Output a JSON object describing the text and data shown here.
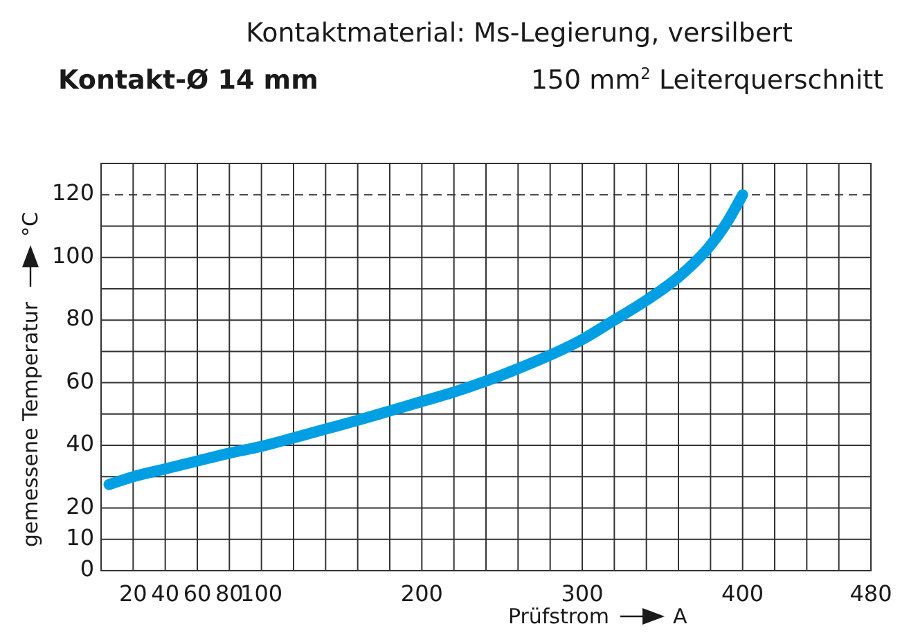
{
  "chart_data": {
    "type": "line",
    "title": "Kontaktmaterial: Ms-Legierung, versilbert",
    "subtitle": "Kontakt-Ø 14 mm",
    "annotations": [
      "150 mm$^{2}$ Leiterquerschnitt"
    ],
    "xlabel": "Prüfstrom A",
    "ylabel": "gemessene Temperatur °C",
    "x": [
      5,
      20,
      40,
      60,
      80,
      100,
      120,
      140,
      160,
      180,
      200,
      220,
      240,
      260,
      280,
      300,
      320,
      340,
      360,
      380,
      390,
      400
    ],
    "series": [
      {
        "color": "#009fe3",
        "values": [
          27.5,
          30,
          32.5,
          35,
          37.5,
          39.7,
          42.4,
          45.2,
          48,
          51,
          54,
          57,
          60.5,
          64.5,
          68.8,
          73.8,
          80,
          86.3,
          93.7,
          103.9,
          111,
          120
        ]
      }
    ],
    "xlim": [
      0,
      480
    ],
    "ylim": [
      0,
      130
    ],
    "xticks": [
      20,
      40,
      60,
      80,
      100,
      {
        "value": 120,
        "label": null
      },
      {
        "value": 140,
        "label": null
      },
      {
        "value": 160,
        "label": null
      },
      {
        "value": 180,
        "label": null
      },
      200,
      {
        "value": 220,
        "label": null
      },
      {
        "value": 240,
        "label": null
      },
      {
        "value": 260,
        "label": null
      },
      {
        "value": 280,
        "label": null
      },
      300,
      {
        "value": 320,
        "label": null
      },
      {
        "value": 340,
        "label": null
      },
      {
        "value": 360,
        "label": null
      },
      {
        "value": 380,
        "label": null
      },
      400,
      {
        "value": 420,
        "label": null
      },
      {
        "value": 440,
        "label": null
      },
      {
        "value": 460,
        "label": null
      },
      480
    ],
    "yticks": [
      0,
      10,
      20,
      {
        "value": 30,
        "label": null
      },
      40,
      {
        "value": 50,
        "label": null
      },
      60,
      {
        "value": 70,
        "label": null
      },
      80,
      {
        "value": 90,
        "label": null
      },
      100,
      {
        "value": 110,
        "label": null
      },
      120
    ],
    "grid": true,
    "marker": "none",
    "line_style": "solid",
    "ref_lines": [
      {
        "axis": "y",
        "value": 120,
        "line_style": "dashed"
      }
    ]
  }
}
